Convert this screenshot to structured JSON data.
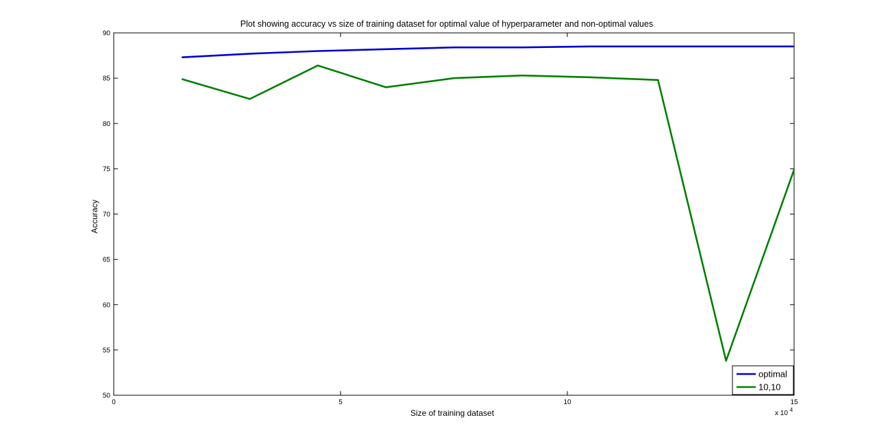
{
  "chart_data": {
    "type": "line",
    "title": "Plot showing accuracy vs size of training dataset for optimal value of hyperparameter and non-optimal values",
    "xlabel": "Size of training dataset",
    "ylabel": "Accuracy",
    "x_exponent_label": "x 10",
    "x_exponent_power": "4",
    "xlim": [
      0,
      15
    ],
    "ylim": [
      50,
      90
    ],
    "x_ticks": [
      0,
      5,
      10,
      15
    ],
    "x_tick_labels": [
      "0",
      "5",
      "10",
      "15"
    ],
    "y_ticks": [
      50,
      55,
      60,
      65,
      70,
      75,
      80,
      85,
      90
    ],
    "y_tick_labels": [
      "50",
      "55",
      "60",
      "65",
      "70",
      "75",
      "80",
      "85",
      "90"
    ],
    "grid": false,
    "legend_position": "bottom-right",
    "x": [
      1.5,
      3.0,
      4.5,
      6.0,
      7.5,
      9.0,
      10.5,
      12.0,
      13.5,
      15.0
    ],
    "series": [
      {
        "name": "optimal",
        "color": "#0000cc",
        "values": [
          87.3,
          87.7,
          88.0,
          88.2,
          88.4,
          88.4,
          88.5,
          88.5,
          88.5,
          88.5
        ]
      },
      {
        "name": "10,10",
        "color": "#007f00",
        "values": [
          84.9,
          82.7,
          86.4,
          84.0,
          85.0,
          85.3,
          85.1,
          84.8,
          53.8,
          74.9
        ]
      }
    ]
  }
}
